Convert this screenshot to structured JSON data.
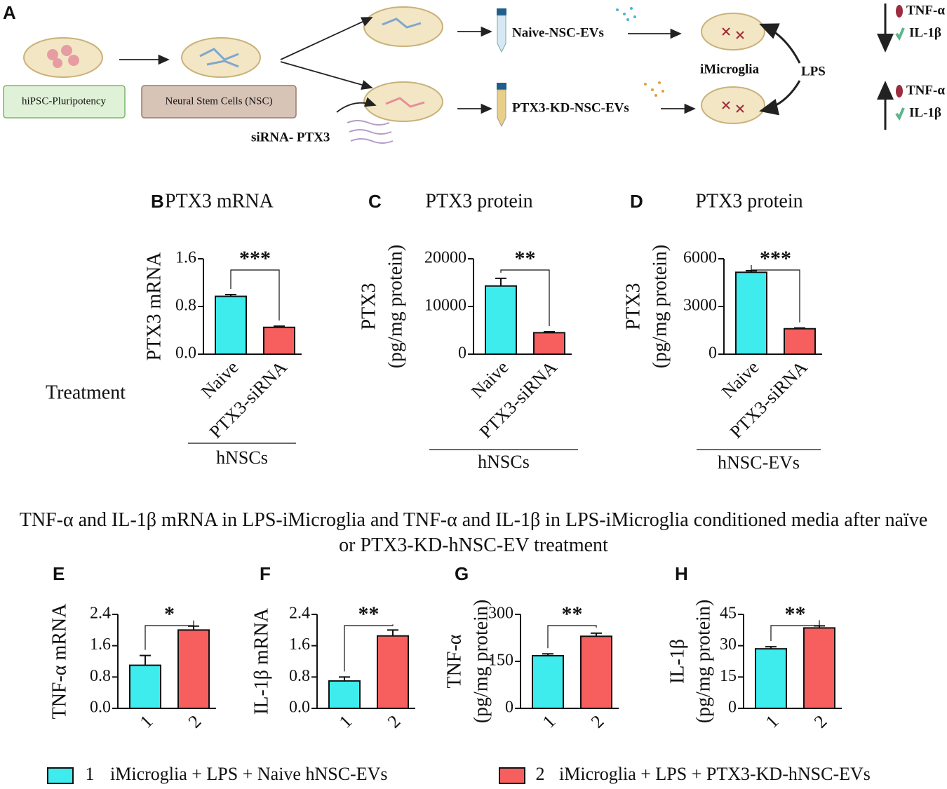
{
  "panel_a": {
    "letter": "A",
    "labels": [
      "hiPSC-Pluripotency",
      "Neural Stem Cells (NSC)",
      "Naive-NSC-EVs",
      "PTX3-KD-NSC-EVs",
      "siRNA- PTX3",
      "iMicroglia",
      "LPS"
    ],
    "cytokines": [
      "TNF-α",
      "IL-1β",
      "TNF-α",
      "IL-1β"
    ]
  },
  "treatment_label": "Treatment",
  "section_title": "TNF-α and IL-1β mRNA in LPS-iMicroglia and TNF-α and IL-1β in LPS-iMicroglia conditioned media after naïve or PTX3-KD-hNSC-EV treatment",
  "legend": [
    {
      "key": "1",
      "label": "iMicroglia + LPS + Naive hNSC-EVs",
      "color": "#3eecee"
    },
    {
      "key": "2",
      "label": "iMicroglia + LPS + PTX3-KD-hNSC-EVs",
      "color": "#f75f5f"
    }
  ],
  "chart_data": [
    {
      "type": "bar",
      "letter": "B",
      "title": "PTX3 mRNA",
      "ylabel": [
        "PTX3 mRNA"
      ],
      "categories": [
        "Naive",
        "PTX3-siRNA"
      ],
      "values": [
        0.97,
        0.45
      ],
      "errors": [
        0.03,
        0.02
      ],
      "colors": [
        "#3eecee",
        "#f75f5f"
      ],
      "ylim": [
        0,
        1.6
      ],
      "yticks": [
        {
          "value": 0,
          "label": "0.0"
        },
        0.8,
        1.6
      ],
      "significance": "***",
      "group_label": "hNSCs"
    },
    {
      "type": "bar",
      "letter": "C",
      "title": "PTX3 protein",
      "ylabel": [
        "PTX3",
        "(pg/mg protein)"
      ],
      "categories": [
        "Naive",
        "PTX3-siRNA"
      ],
      "values": [
        14300,
        4500
      ],
      "errors": [
        1600,
        200
      ],
      "colors": [
        "#3eecee",
        "#f75f5f"
      ],
      "ylim": [
        0,
        20000
      ],
      "yticks": [
        0,
        10000,
        20000
      ],
      "significance": "**",
      "group_label": "hNSCs"
    },
    {
      "type": "bar",
      "letter": "D",
      "title": "PTX3 protein",
      "ylabel": [
        "PTX3",
        "(pg/mg protein)"
      ],
      "categories": [
        "Naive",
        "PTX3-siRNA"
      ],
      "values": [
        5150,
        1600
      ],
      "errors": [
        100,
        50
      ],
      "colors": [
        "#3eecee",
        "#f75f5f"
      ],
      "ylim": [
        0,
        6000
      ],
      "yticks": [
        0,
        3000,
        6000
      ],
      "significance": "***",
      "group_label": "hNSC-EVs"
    },
    {
      "type": "bar",
      "letter": "E",
      "ylabel": [
        "TNF-α mRNA"
      ],
      "categories": [
        "1",
        "2"
      ],
      "values": [
        1.1,
        2.0
      ],
      "errors": [
        0.25,
        0.1
      ],
      "colors": [
        "#3eecee",
        "#f75f5f"
      ],
      "ylim": [
        0,
        2.4
      ],
      "yticks": [
        {
          "value": 0,
          "label": "0.0"
        },
        0.8,
        1.6,
        2.4
      ],
      "significance": "*"
    },
    {
      "type": "bar",
      "letter": "F",
      "ylabel": [
        "IL-1β mRNA"
      ],
      "categories": [
        "1",
        "2"
      ],
      "values": [
        0.7,
        1.85
      ],
      "errors": [
        0.1,
        0.15
      ],
      "colors": [
        "#3eecee",
        "#f75f5f"
      ],
      "ylim": [
        0,
        2.4
      ],
      "yticks": [
        {
          "value": 0,
          "label": "0.0"
        },
        0.8,
        1.6,
        2.4
      ],
      "significance": "**"
    },
    {
      "type": "bar",
      "letter": "G",
      "ylabel": [
        "TNF-α",
        "(pg/mg protein)"
      ],
      "categories": [
        "1",
        "2"
      ],
      "values": [
        168,
        230
      ],
      "errors": [
        6,
        10
      ],
      "colors": [
        "#3eecee",
        "#f75f5f"
      ],
      "ylim": [
        0,
        300
      ],
      "yticks": [
        0,
        150,
        300
      ],
      "significance": "**"
    },
    {
      "type": "bar",
      "letter": "H",
      "ylabel": [
        "IL-1β",
        "(pg/mg protein)"
      ],
      "categories": [
        "1",
        "2"
      ],
      "values": [
        28.5,
        38.5
      ],
      "errors": [
        1,
        1
      ],
      "colors": [
        "#3eecee",
        "#f75f5f"
      ],
      "ylim": [
        0,
        45
      ],
      "yticks": [
        0,
        15,
        30,
        45
      ],
      "significance": "**"
    }
  ]
}
